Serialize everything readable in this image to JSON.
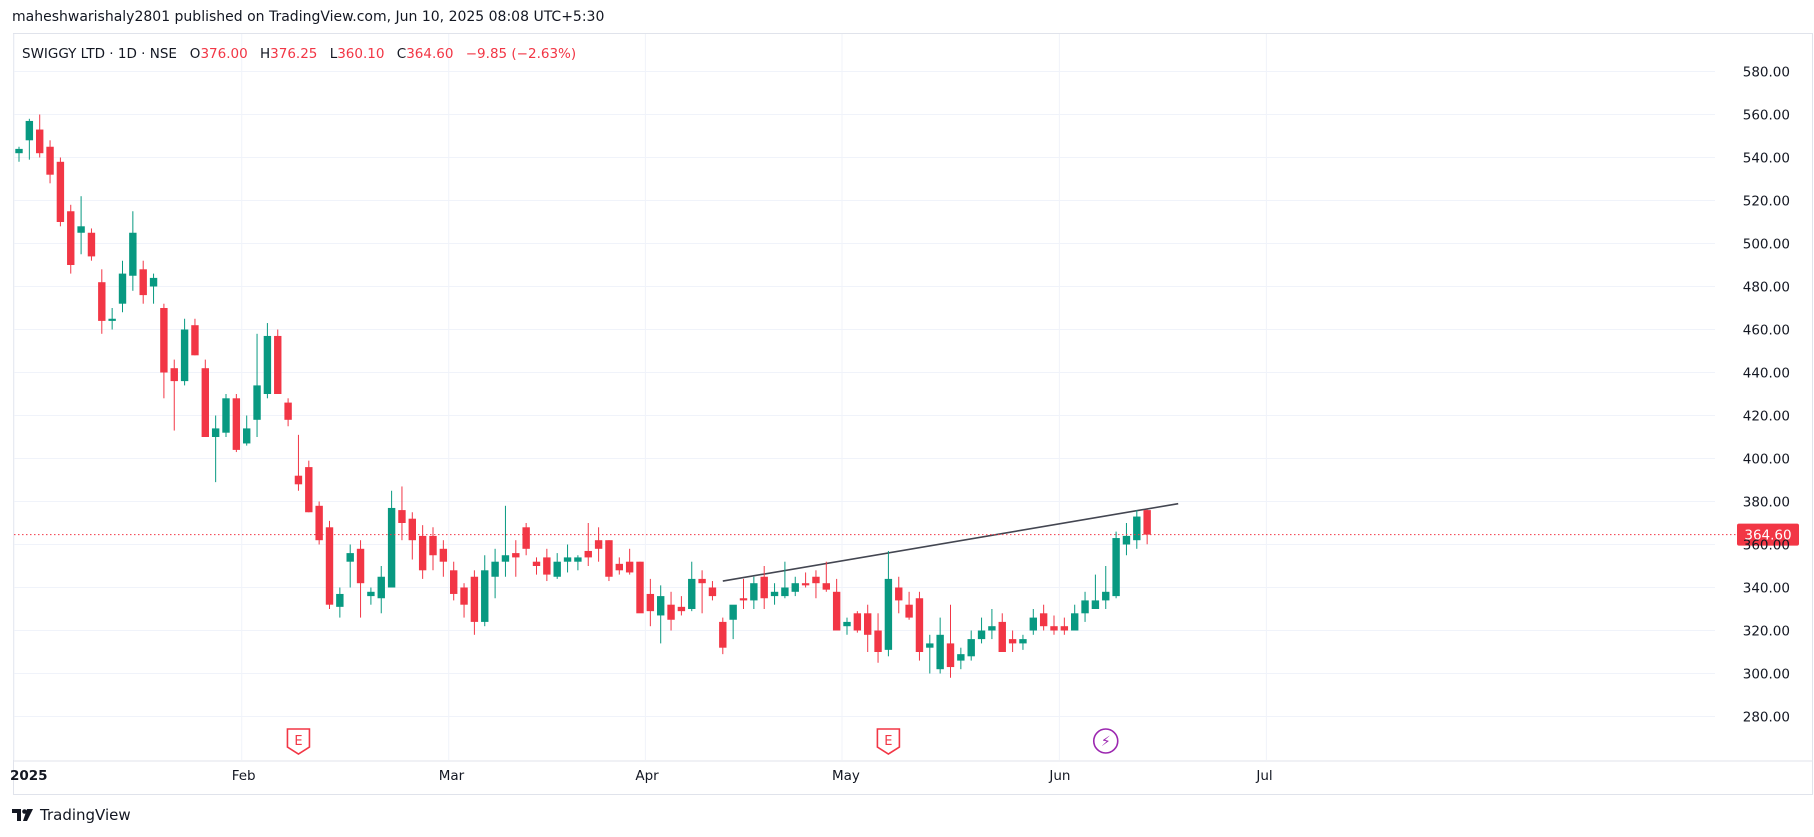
{
  "header": {
    "publisher_line": "maheshwarishaly2801 published on TradingView.com, Jun 10, 2025 08:08 UTC+5:30"
  },
  "legend": {
    "symbol": "SWIGGY LTD · 1D · NSE",
    "open_label": "O",
    "open": "376.00",
    "high_label": "H",
    "high": "376.25",
    "low_label": "L",
    "low": "360.10",
    "close_label": "C",
    "close": "364.60",
    "change": "−9.85 (−2.63%)"
  },
  "brand": {
    "name": "TradingView"
  },
  "colors": {
    "up": "#089981",
    "down": "#f23645",
    "grid": "#f0f3fa",
    "trendline": "#434651",
    "last_price_line": "#f23645",
    "earnings": "#f23645",
    "dividend": "#9c27b0"
  },
  "chart_data": {
    "type": "candlestick",
    "title": "SWIGGY LTD · 1D · NSE",
    "ylim": [
      270,
      590
    ],
    "y_ticks": [
      280,
      300,
      320,
      340,
      360,
      380,
      400,
      420,
      440,
      460,
      480,
      500,
      520,
      540,
      560,
      580
    ],
    "y_tick_labels": [
      "280.00",
      "300.00",
      "320.00",
      "340.00",
      "360.00",
      "380.00",
      "400.00",
      "420.00",
      "440.00",
      "460.00",
      "480.00",
      "500.00",
      "520.00",
      "540.00",
      "560.00",
      "580.00"
    ],
    "x_ticks": [
      {
        "label": "2025",
        "index": 0
      },
      {
        "label": "Feb",
        "index": 22
      },
      {
        "label": "Mar",
        "index": 42
      },
      {
        "label": "Apr",
        "index": 61
      },
      {
        "label": "May",
        "index": 80
      },
      {
        "label": "Jun",
        "index": 101
      },
      {
        "label": "Jul",
        "index": 121
      }
    ],
    "x_count": 148,
    "last_price": 364.6,
    "last_price_label": "364.60",
    "candles": [
      [
        542,
        545,
        538,
        544
      ],
      [
        548,
        558,
        539,
        557
      ],
      [
        553,
        560,
        540,
        542
      ],
      [
        545,
        548,
        528,
        532
      ],
      [
        538,
        540,
        508,
        510
      ],
      [
        515,
        518,
        486,
        490
      ],
      [
        505,
        522,
        495,
        508
      ],
      [
        505,
        507,
        492,
        494
      ],
      [
        482,
        488,
        458,
        464
      ],
      [
        464,
        470,
        460,
        465
      ],
      [
        472,
        492,
        468,
        486
      ],
      [
        485,
        515,
        478,
        505
      ],
      [
        488,
        492,
        472,
        476
      ],
      [
        480,
        486,
        472,
        484
      ],
      [
        470,
        472,
        428,
        440
      ],
      [
        442,
        446,
        413,
        436
      ],
      [
        436,
        465,
        434,
        460
      ],
      [
        462,
        465,
        448,
        448
      ],
      [
        442,
        446,
        410,
        410
      ],
      [
        410,
        420,
        389,
        414
      ],
      [
        412,
        430,
        410,
        428
      ],
      [
        428,
        430,
        403,
        404
      ],
      [
        407,
        420,
        406,
        414
      ],
      [
        418,
        458,
        410,
        434
      ],
      [
        430,
        463,
        428,
        457
      ],
      [
        457,
        460,
        430,
        430
      ],
      [
        426,
        428,
        415,
        418
      ],
      [
        392,
        411,
        385,
        388
      ],
      [
        396,
        399,
        375,
        375
      ],
      [
        378,
        380,
        360,
        362
      ],
      [
        368,
        371,
        330,
        332
      ],
      [
        331,
        340,
        326,
        337
      ],
      [
        352,
        360,
        340,
        356
      ],
      [
        358,
        362,
        326,
        342
      ],
      [
        336,
        340,
        332,
        338
      ],
      [
        335,
        350,
        328,
        345
      ],
      [
        340,
        385,
        340,
        377
      ],
      [
        376,
        387,
        362,
        370
      ],
      [
        372,
        375,
        353,
        362
      ],
      [
        364,
        369,
        344,
        348
      ],
      [
        364,
        368,
        348,
        355
      ],
      [
        358,
        362,
        345,
        352
      ],
      [
        348,
        352,
        334,
        337
      ],
      [
        340,
        342,
        326,
        332
      ],
      [
        345,
        348,
        318,
        324
      ],
      [
        324,
        355,
        322,
        348
      ],
      [
        345,
        358,
        335,
        352
      ],
      [
        352,
        378,
        345,
        355
      ],
      [
        356,
        362,
        345,
        354
      ],
      [
        368,
        370,
        355,
        358
      ],
      [
        352,
        354,
        346,
        350
      ],
      [
        354,
        358,
        343,
        346
      ],
      [
        345,
        356,
        344,
        352
      ],
      [
        352,
        360,
        347,
        354
      ],
      [
        352,
        355,
        348,
        354
      ],
      [
        357,
        370,
        350,
        354
      ],
      [
        362,
        368,
        352,
        358
      ],
      [
        362,
        362,
        343,
        345
      ],
      [
        351,
        354,
        346,
        348
      ],
      [
        352,
        358,
        346,
        347
      ],
      [
        352,
        352,
        330,
        328
      ],
      [
        337,
        344,
        322,
        329
      ],
      [
        327,
        341,
        314,
        336
      ],
      [
        332,
        338,
        320,
        325
      ],
      [
        331,
        336,
        327,
        329
      ],
      [
        330,
        352,
        329,
        344
      ],
      [
        344,
        348,
        328,
        342
      ],
      [
        340,
        343,
        334,
        336
      ],
      [
        324,
        326,
        309,
        312
      ],
      [
        325,
        330,
        316,
        332
      ],
      [
        335,
        344,
        330,
        334
      ],
      [
        334,
        345,
        330,
        342
      ],
      [
        345,
        350,
        330,
        335
      ],
      [
        336,
        342,
        332,
        338
      ],
      [
        336,
        352,
        335,
        340
      ],
      [
        338,
        345,
        336,
        342
      ],
      [
        342,
        347,
        340,
        341
      ],
      [
        345,
        348,
        335,
        342
      ],
      [
        342,
        352,
        338,
        339
      ],
      [
        338,
        344,
        320,
        320
      ],
      [
        322,
        326,
        318,
        324
      ],
      [
        328,
        329,
        319,
        320
      ],
      [
        328,
        332,
        310,
        318
      ],
      [
        320,
        328,
        305,
        310
      ],
      [
        311,
        357,
        308,
        344
      ],
      [
        340,
        345,
        328,
        334
      ],
      [
        332,
        338,
        325,
        326
      ],
      [
        335,
        338,
        306,
        310
      ],
      [
        312,
        318,
        300,
        314
      ],
      [
        302,
        326,
        300,
        318
      ],
      [
        314,
        332,
        298,
        303
      ],
      [
        306,
        312,
        302,
        309
      ],
      [
        308,
        320,
        306,
        316
      ],
      [
        316,
        326,
        314,
        320
      ],
      [
        320,
        330,
        316,
        322
      ],
      [
        324,
        328,
        310,
        310
      ],
      [
        316,
        320,
        310,
        314
      ],
      [
        314,
        318,
        311,
        316
      ],
      [
        320,
        330,
        318,
        326
      ],
      [
        328,
        332,
        320,
        322
      ],
      [
        322,
        327,
        318,
        320
      ],
      [
        322,
        326,
        318,
        320
      ],
      [
        320,
        332,
        320,
        328
      ],
      [
        328,
        338,
        324,
        334
      ],
      [
        330,
        346,
        330,
        334
      ],
      [
        334,
        350,
        330,
        338
      ],
      [
        336,
        366,
        335,
        363
      ],
      [
        360,
        370,
        355,
        364
      ],
      [
        362,
        376,
        358,
        373
      ],
      [
        376,
        376.25,
        360.1,
        364.6
      ]
    ],
    "trendline": {
      "from": {
        "index": 68,
        "price": 343
      },
      "to": {
        "index": 112,
        "price": 379
      }
    },
    "event_markers": [
      {
        "type": "earnings",
        "label": "E",
        "index": 27
      },
      {
        "type": "earnings",
        "label": "E",
        "index": 84
      },
      {
        "type": "dividend",
        "label": "⚡",
        "index": 105
      }
    ]
  }
}
